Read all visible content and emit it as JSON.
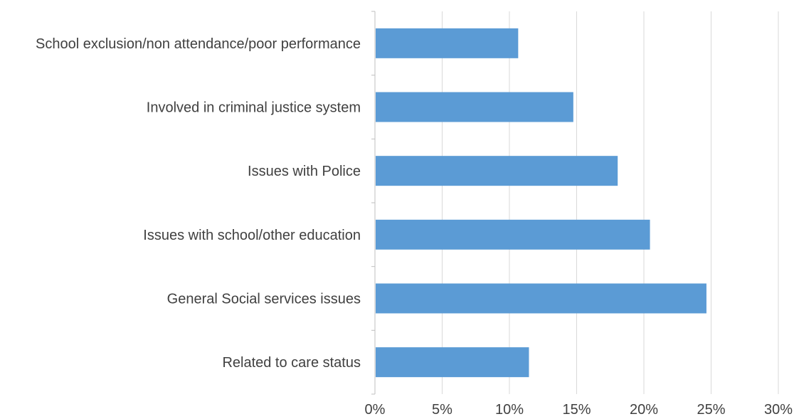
{
  "chart_data": {
    "type": "bar",
    "orientation": "horizontal",
    "categories": [
      "School exclusion/non attendance/poor performance",
      "Involved in criminal justice system",
      "Issues with Police",
      "Issues with school/other education",
      "General Social services issues",
      "Related to care status"
    ],
    "values": [
      10.6,
      14.7,
      18.0,
      20.4,
      24.6,
      11.4
    ],
    "xlim": [
      0,
      30
    ],
    "xticks": [
      0,
      5,
      10,
      15,
      20,
      25,
      30
    ],
    "tick_labels": [
      "0%",
      "5%",
      "10%",
      "15%",
      "20%",
      "25%",
      "30%"
    ],
    "bar_color": "#5b9bd5",
    "grid": true,
    "grid_color": "#d9d9d9",
    "legend": "none"
  }
}
